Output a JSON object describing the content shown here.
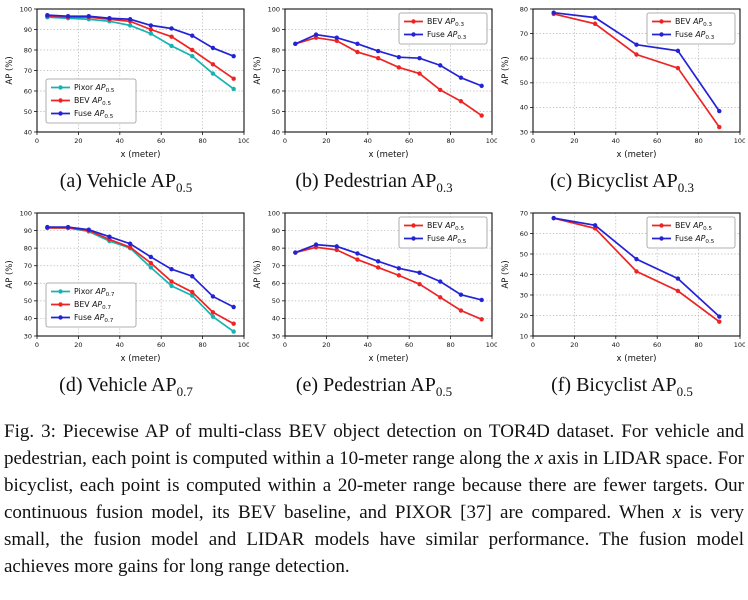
{
  "figure_caption": {
    "parts": [
      "Fig. 3: Piecewise AP of multi-class BEV object detection on TOR4D dataset. For vehicle and pedestrian, each point is computed within a 10-meter range along the ",
      "x",
      " axis in LIDAR space. For bicyclist, each point is computed within a 20-meter range because there are fewer targets. Our continuous fusion model, its BEV baseline, and PIXOR [37] are compared. When ",
      "x",
      " is very small, the fusion model and LIDAR models have similar performance. The fusion model achieves more gains for long range detection."
    ]
  },
  "colors": {
    "pixor": "#17b3b3",
    "bev": "#ee2424",
    "fuse": "#2323d6",
    "grid": "#b0b0b0",
    "axis": "#111111",
    "legend_border": "#999999"
  },
  "chart_data": [
    {
      "id": "a",
      "type": "line",
      "caption_main": "(a) Vehicle AP",
      "caption_sub": "0.5",
      "xlabel": "x (meter)",
      "ylabel": "AP (%)",
      "xlim": [
        0,
        100
      ],
      "xticks": [
        0,
        20,
        40,
        60,
        80,
        100
      ],
      "ylim": [
        40,
        100
      ],
      "yticks": [
        40,
        50,
        60,
        70,
        80,
        90,
        100
      ],
      "grid": true,
      "legend_pos": "lower-left",
      "x": [
        5,
        15,
        25,
        35,
        45,
        55,
        65,
        75,
        85,
        95
      ],
      "series": [
        {
          "label_main": "Pixor ",
          "label_ap": "AP",
          "label_sub": "0.5",
          "color": "#17b3b3",
          "values": [
            96,
            95.5,
            95,
            94,
            92,
            88,
            82,
            77,
            68.5,
            61
          ]
        },
        {
          "label_main": "BEV ",
          "label_ap": "AP",
          "label_sub": "0.5",
          "color": "#ee2424",
          "values": [
            96.5,
            96,
            96,
            95,
            94,
            90,
            86.5,
            80,
            73,
            66
          ]
        },
        {
          "label_main": "Fuse ",
          "label_ap": "AP",
          "label_sub": "0.5",
          "color": "#2323d6",
          "values": [
            97,
            96.5,
            96.5,
            95.5,
            95,
            92,
            90.5,
            87,
            81,
            77
          ]
        }
      ]
    },
    {
      "id": "b",
      "type": "line",
      "caption_main": "(b) Pedestrian AP",
      "caption_sub": "0.3",
      "xlabel": "x (meter)",
      "ylabel": "AP (%)",
      "xlim": [
        0,
        100
      ],
      "xticks": [
        0,
        20,
        40,
        60,
        80,
        100
      ],
      "ylim": [
        40,
        100
      ],
      "yticks": [
        40,
        50,
        60,
        70,
        80,
        90,
        100
      ],
      "grid": true,
      "legend_pos": "upper-right",
      "x": [
        5,
        15,
        25,
        35,
        45,
        55,
        65,
        75,
        85,
        95
      ],
      "series": [
        {
          "label_main": "BEV ",
          "label_ap": "AP",
          "label_sub": "0.3",
          "color": "#ee2424",
          "values": [
            83,
            86,
            84.5,
            79,
            76,
            71.5,
            68.5,
            60.5,
            55,
            48
          ]
        },
        {
          "label_main": "Fuse ",
          "label_ap": "AP",
          "label_sub": "0.3",
          "color": "#2323d6",
          "values": [
            83,
            87.5,
            86,
            83,
            79.5,
            76.5,
            76,
            72.5,
            66.5,
            62.5
          ]
        }
      ]
    },
    {
      "id": "c",
      "type": "line",
      "caption_main": "(c) Bicyclist AP",
      "caption_sub": "0.3",
      "xlabel": "x (meter)",
      "ylabel": "AP (%)",
      "xlim": [
        0,
        100
      ],
      "xticks": [
        0,
        20,
        40,
        60,
        80,
        100
      ],
      "ylim": [
        30,
        80
      ],
      "yticks": [
        30,
        40,
        50,
        60,
        70,
        80
      ],
      "grid": true,
      "legend_pos": "upper-right",
      "x": [
        10,
        30,
        50,
        70,
        90
      ],
      "series": [
        {
          "label_main": "BEV ",
          "label_ap": "AP",
          "label_sub": "0.3",
          "color": "#ee2424",
          "values": [
            78,
            74,
            61.5,
            56,
            32
          ]
        },
        {
          "label_main": "Fuse ",
          "label_ap": "AP",
          "label_sub": "0.3",
          "color": "#2323d6",
          "values": [
            78.5,
            76.5,
            65.5,
            63,
            38.5
          ]
        }
      ]
    },
    {
      "id": "d",
      "type": "line",
      "caption_main": "(d) Vehicle AP",
      "caption_sub": "0.7",
      "xlabel": "x (meter)",
      "ylabel": "AP (%)",
      "xlim": [
        0,
        100
      ],
      "xticks": [
        0,
        20,
        40,
        60,
        80,
        100
      ],
      "ylim": [
        30,
        100
      ],
      "yticks": [
        30,
        40,
        50,
        60,
        70,
        80,
        90,
        100
      ],
      "grid": true,
      "legend_pos": "lower-left",
      "x": [
        5,
        15,
        25,
        35,
        45,
        55,
        65,
        75,
        85,
        95
      ],
      "series": [
        {
          "label_main": "Pixor ",
          "label_ap": "AP",
          "label_sub": "0.7",
          "color": "#17b3b3",
          "values": [
            91.5,
            91.5,
            89.5,
            84,
            80,
            69,
            58.5,
            53,
            41,
            32.5
          ]
        },
        {
          "label_main": "BEV ",
          "label_ap": "AP",
          "label_sub": "0.7",
          "color": "#ee2424",
          "values": [
            91.5,
            91.5,
            90,
            85,
            80.5,
            71.5,
            61,
            55,
            43.5,
            37
          ]
        },
        {
          "label_main": "Fuse ",
          "label_ap": "AP",
          "label_sub": "0.7",
          "color": "#2323d6",
          "values": [
            92,
            92,
            90.5,
            86.5,
            82.5,
            75,
            68,
            64,
            52.5,
            46.5
          ]
        }
      ]
    },
    {
      "id": "e",
      "type": "line",
      "caption_main": "(e) Pedestrian AP",
      "caption_sub": "0.5",
      "xlabel": "x (meter)",
      "ylabel": "AP (%)",
      "xlim": [
        0,
        100
      ],
      "xticks": [
        0,
        20,
        40,
        60,
        80,
        100
      ],
      "ylim": [
        30,
        100
      ],
      "yticks": [
        30,
        40,
        50,
        60,
        70,
        80,
        90,
        100
      ],
      "grid": true,
      "legend_pos": "upper-right",
      "x": [
        5,
        15,
        25,
        35,
        45,
        55,
        65,
        75,
        85,
        95
      ],
      "series": [
        {
          "label_main": "BEV ",
          "label_ap": "AP",
          "label_sub": "0.5",
          "color": "#ee2424",
          "values": [
            77.5,
            80.5,
            79,
            73.5,
            69,
            64.5,
            59.5,
            52,
            44.5,
            39.5
          ]
        },
        {
          "label_main": "Fuse ",
          "label_ap": "AP",
          "label_sub": "0.5",
          "color": "#2323d6",
          "values": [
            77.5,
            82,
            81,
            77,
            72.5,
            68.5,
            66,
            61,
            53.5,
            50.5
          ]
        }
      ]
    },
    {
      "id": "f",
      "type": "line",
      "caption_main": "(f) Bicyclist AP",
      "caption_sub": "0.5",
      "xlabel": "x (meter)",
      "ylabel": "AP (%)",
      "xlim": [
        0,
        100
      ],
      "xticks": [
        0,
        20,
        40,
        60,
        80,
        100
      ],
      "ylim": [
        10,
        70
      ],
      "yticks": [
        10,
        20,
        30,
        40,
        50,
        60,
        70
      ],
      "grid": true,
      "legend_pos": "upper-right",
      "x": [
        10,
        30,
        50,
        70,
        90
      ],
      "series": [
        {
          "label_main": "BEV ",
          "label_ap": "AP",
          "label_sub": "0.5",
          "color": "#ee2424",
          "values": [
            67.5,
            62.5,
            41.5,
            32,
            17
          ]
        },
        {
          "label_main": "Fuse ",
          "label_ap": "AP",
          "label_sub": "0.5",
          "color": "#2323d6",
          "values": [
            67.5,
            64,
            47.5,
            38,
            19.5
          ]
        }
      ]
    }
  ]
}
